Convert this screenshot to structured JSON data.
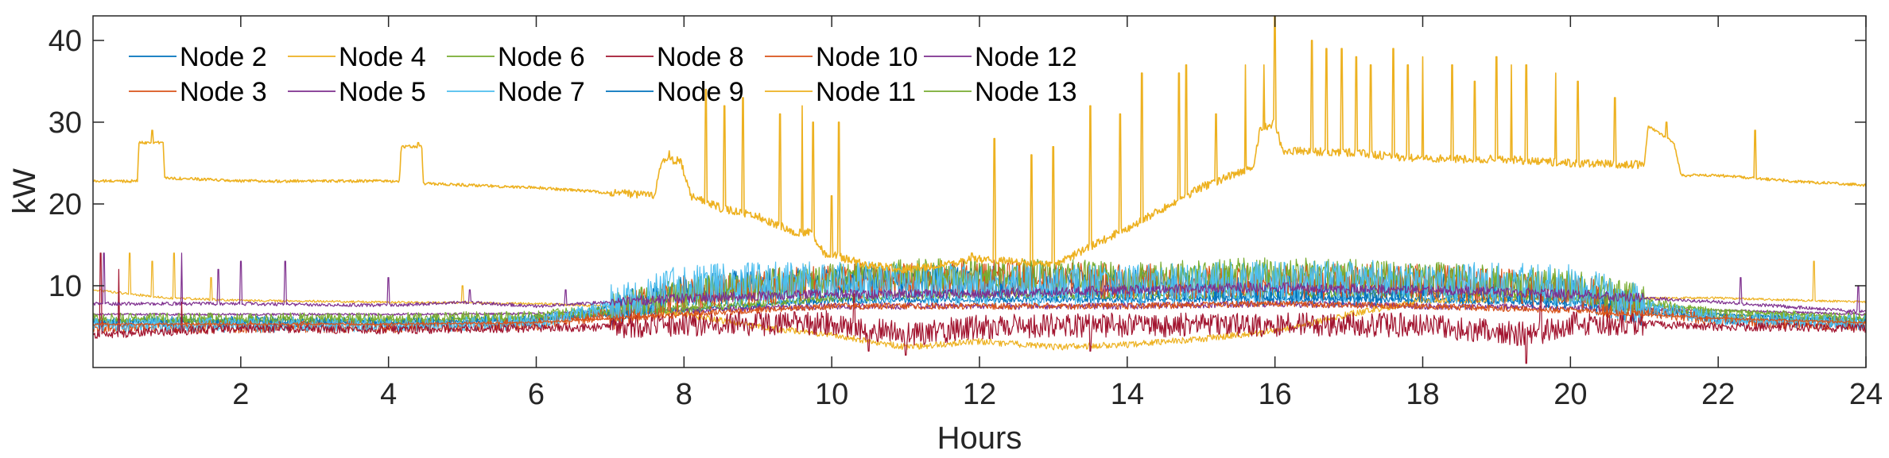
{
  "chart_data": {
    "type": "line",
    "title": "",
    "xlabel": "Hours",
    "ylabel": "kW",
    "xlim": [
      0,
      24
    ],
    "ylim": [
      0,
      43
    ],
    "xticks": [
      2,
      4,
      6,
      8,
      10,
      12,
      14,
      16,
      18,
      20,
      22,
      24
    ],
    "yticks": [
      10,
      20,
      30,
      40
    ],
    "grid": false,
    "legend_position": "top-left",
    "legend_columns": 6,
    "series": [
      {
        "name": "Node 2",
        "color": "#0072BD",
        "points": [
          [
            0,
            5.5
          ],
          [
            2,
            5.6
          ],
          [
            4,
            5.4
          ],
          [
            6,
            5.8
          ],
          [
            7,
            7
          ],
          [
            8,
            9.5
          ],
          [
            10,
            10.5
          ],
          [
            12,
            10.5
          ],
          [
            14,
            10
          ],
          [
            16,
            9.5
          ],
          [
            18,
            9.5
          ],
          [
            20,
            9
          ],
          [
            21,
            7
          ],
          [
            22,
            6
          ],
          [
            24,
            5.5
          ]
        ],
        "noise": 2.0
      },
      {
        "name": "Node 3",
        "color": "#D95319",
        "points": [
          [
            0,
            5
          ],
          [
            2,
            5
          ],
          [
            4,
            5
          ],
          [
            6,
            5.3
          ],
          [
            7,
            6.5
          ],
          [
            8,
            9
          ],
          [
            10,
            10.5
          ],
          [
            12,
            11
          ],
          [
            14,
            10.5
          ],
          [
            16,
            10.5
          ],
          [
            18,
            10.5
          ],
          [
            20,
            9.5
          ],
          [
            21,
            7
          ],
          [
            22,
            5.8
          ],
          [
            24,
            5.2
          ]
        ],
        "noise": 2.2
      },
      {
        "name": "Node 4",
        "color": "#EDB120",
        "points": [
          [
            0,
            22.8
          ],
          [
            0.6,
            22.8
          ],
          [
            0.62,
            27.5
          ],
          [
            0.95,
            27.5
          ],
          [
            0.97,
            23.2
          ],
          [
            2,
            22.8
          ],
          [
            4.15,
            22.8
          ],
          [
            4.17,
            27
          ],
          [
            4.45,
            27
          ],
          [
            4.47,
            22.5
          ],
          [
            6,
            22
          ],
          [
            7.6,
            21
          ],
          [
            7.7,
            25.5
          ],
          [
            7.95,
            25.3
          ],
          [
            8.1,
            21
          ],
          [
            8.5,
            19.5
          ],
          [
            9,
            18.5
          ],
          [
            9.5,
            16.5
          ],
          [
            9.7,
            16.5
          ],
          [
            9.9,
            14
          ],
          [
            10.5,
            12.5
          ],
          [
            11,
            12
          ],
          [
            12,
            13.3
          ],
          [
            13,
            12.5
          ],
          [
            14,
            17
          ],
          [
            15,
            22
          ],
          [
            15.7,
            24.5
          ],
          [
            15.8,
            29
          ],
          [
            16,
            30
          ],
          [
            16.1,
            26.5
          ],
          [
            17,
            26.3
          ],
          [
            18,
            25.5
          ],
          [
            19,
            25.5
          ],
          [
            20,
            25
          ],
          [
            21,
            24.8
          ],
          [
            21.05,
            29.5
          ],
          [
            21.4,
            27.5
          ],
          [
            21.5,
            23.5
          ],
          [
            22,
            23.5
          ],
          [
            23,
            22.8
          ],
          [
            24,
            22.3
          ]
        ],
        "noise": 0.5,
        "spikes": [
          [
            0.8,
            29
          ],
          [
            4.4,
            27.5
          ],
          [
            7.8,
            26.5
          ],
          [
            8.3,
            34
          ],
          [
            8.55,
            32
          ],
          [
            8.8,
            33
          ],
          [
            9.3,
            31
          ],
          [
            9.6,
            32
          ],
          [
            9.75,
            30
          ],
          [
            10.0,
            21
          ],
          [
            10.1,
            30
          ],
          [
            11.9,
            14
          ],
          [
            12.2,
            28
          ],
          [
            12.7,
            26
          ],
          [
            13.0,
            27
          ],
          [
            13.5,
            32
          ],
          [
            13.9,
            31
          ],
          [
            14.2,
            36
          ],
          [
            14.7,
            36
          ],
          [
            14.8,
            37
          ],
          [
            15.2,
            31
          ],
          [
            15.6,
            37
          ],
          [
            15.85,
            37
          ],
          [
            16.0,
            43
          ],
          [
            16.5,
            40
          ],
          [
            16.7,
            39
          ],
          [
            16.9,
            39
          ],
          [
            17.1,
            38
          ],
          [
            17.3,
            37
          ],
          [
            17.6,
            39
          ],
          [
            17.8,
            37
          ],
          [
            18.0,
            38
          ],
          [
            18.4,
            37
          ],
          [
            18.7,
            35
          ],
          [
            19.0,
            38
          ],
          [
            19.2,
            37
          ],
          [
            19.4,
            37
          ],
          [
            19.8,
            36
          ],
          [
            20.1,
            35
          ],
          [
            20.6,
            33
          ],
          [
            21.3,
            30
          ],
          [
            22.5,
            29
          ]
        ]
      },
      {
        "name": "Node 5",
        "color": "#7E2F8E",
        "points": [
          [
            0,
            7.8
          ],
          [
            2,
            7.8
          ],
          [
            4,
            7.6
          ],
          [
            5,
            8
          ],
          [
            6,
            7.5
          ],
          [
            7,
            8
          ],
          [
            8,
            8.5
          ],
          [
            10,
            9
          ],
          [
            12,
            9
          ],
          [
            14,
            9.5
          ],
          [
            16,
            9.8
          ],
          [
            18,
            9.5
          ],
          [
            20,
            9
          ],
          [
            22,
            8
          ],
          [
            24,
            6.8
          ]
        ],
        "noise": 0.6,
        "spikes": [
          [
            0.15,
            14
          ],
          [
            1.2,
            14
          ],
          [
            1.7,
            12
          ],
          [
            2.0,
            13
          ],
          [
            2.6,
            13
          ],
          [
            4.0,
            11
          ],
          [
            5.1,
            9.5
          ],
          [
            6.4,
            9.5
          ],
          [
            22.3,
            11
          ],
          [
            23.9,
            10
          ]
        ]
      },
      {
        "name": "Node 6",
        "color": "#77AC30",
        "points": [
          [
            0,
            6
          ],
          [
            2,
            6
          ],
          [
            4,
            6
          ],
          [
            6,
            6.3
          ],
          [
            7,
            7
          ],
          [
            8,
            9
          ],
          [
            10,
            11
          ],
          [
            12,
            11.5
          ],
          [
            14,
            11
          ],
          [
            16,
            11.5
          ],
          [
            18,
            11
          ],
          [
            20,
            10
          ],
          [
            21,
            8
          ],
          [
            22,
            6.5
          ],
          [
            24,
            6
          ]
        ],
        "noise": 2.0
      },
      {
        "name": "Node 7",
        "color": "#4DBEEE",
        "points": [
          [
            0,
            5.2
          ],
          [
            2,
            5.2
          ],
          [
            4,
            5.2
          ],
          [
            6,
            5.5
          ],
          [
            7,
            7.5
          ],
          [
            8,
            10
          ],
          [
            10,
            10.5
          ],
          [
            12,
            10
          ],
          [
            14,
            10
          ],
          [
            16,
            10.5
          ],
          [
            18,
            10.5
          ],
          [
            20,
            10
          ],
          [
            21,
            7.5
          ],
          [
            22,
            6
          ],
          [
            24,
            5.5
          ]
        ],
        "noise": 2.6
      },
      {
        "name": "Node 8",
        "color": "#A2142F",
        "points": [
          [
            0,
            4
          ],
          [
            2,
            4.8
          ],
          [
            4,
            4.6
          ],
          [
            6,
            4.8
          ],
          [
            8,
            5.2
          ],
          [
            10,
            5.5
          ],
          [
            11,
            4
          ],
          [
            12,
            5
          ],
          [
            14,
            5.2
          ],
          [
            16,
            5.2
          ],
          [
            18,
            5.2
          ],
          [
            19.5,
            4
          ],
          [
            20,
            5.5
          ],
          [
            22,
            5
          ],
          [
            24,
            4.8
          ]
        ],
        "noise": 1.5,
        "spikes": [
          [
            0.1,
            14
          ],
          [
            0.35,
            12
          ],
          [
            1.2,
            8
          ],
          [
            10.3,
            9
          ],
          [
            10.5,
            2
          ],
          [
            11.0,
            1.5
          ],
          [
            13.5,
            2
          ],
          [
            19.4,
            0.5
          ],
          [
            19.6,
            9
          ]
        ]
      },
      {
        "name": "Node 9",
        "color": "#0072BD",
        "points": [
          [
            0,
            5.6
          ],
          [
            2,
            5.6
          ],
          [
            4,
            5.5
          ],
          [
            6,
            5.8
          ],
          [
            8,
            7
          ],
          [
            10,
            8.2
          ],
          [
            12,
            8.3
          ],
          [
            14,
            8.3
          ],
          [
            16,
            8.5
          ],
          [
            18,
            8.3
          ],
          [
            20,
            8
          ],
          [
            22,
            6.5
          ],
          [
            24,
            5.8
          ]
        ],
        "noise": 0.4
      },
      {
        "name": "Node 10",
        "color": "#D95319",
        "points": [
          [
            0,
            5.3
          ],
          [
            2,
            5.3
          ],
          [
            4,
            5.3
          ],
          [
            6,
            5.5
          ],
          [
            8,
            6.5
          ],
          [
            10,
            7.5
          ],
          [
            12,
            7.5
          ],
          [
            14,
            7.5
          ],
          [
            16,
            7.8
          ],
          [
            18,
            7.5
          ],
          [
            20,
            7
          ],
          [
            22,
            6
          ],
          [
            24,
            5.5
          ]
        ],
        "noise": 0.4
      },
      {
        "name": "Node 11",
        "color": "#EDB120",
        "points": [
          [
            0,
            9.5
          ],
          [
            1,
            8.5
          ],
          [
            2,
            8.2
          ],
          [
            4,
            8
          ],
          [
            6,
            7.8
          ],
          [
            7,
            7.5
          ],
          [
            8,
            6.5
          ],
          [
            9,
            5
          ],
          [
            10,
            4
          ],
          [
            11,
            2.5
          ],
          [
            12,
            3.2
          ],
          [
            13,
            2.5
          ],
          [
            14,
            2.8
          ],
          [
            15,
            3.5
          ],
          [
            16,
            4.5
          ],
          [
            17,
            6.5
          ],
          [
            18,
            8.2
          ],
          [
            20,
            8.5
          ],
          [
            22,
            8.5
          ],
          [
            24,
            8
          ]
        ],
        "noise": 0.4,
        "spikes": [
          [
            0.5,
            14
          ],
          [
            0.8,
            13
          ],
          [
            1.1,
            14
          ],
          [
            1.6,
            11
          ],
          [
            5.0,
            10
          ],
          [
            23.3,
            13
          ]
        ]
      },
      {
        "name": "Node 12",
        "color": "#7E2F8E",
        "points": [
          [
            0,
            6.5
          ],
          [
            2,
            6.5
          ],
          [
            4,
            6.5
          ],
          [
            6,
            6.6
          ],
          [
            8,
            7
          ],
          [
            10,
            7.5
          ],
          [
            12,
            7.5
          ],
          [
            14,
            7.5
          ],
          [
            16,
            7.8
          ],
          [
            18,
            7.5
          ],
          [
            20,
            7.3
          ],
          [
            22,
            7
          ],
          [
            24,
            6.5
          ]
        ],
        "noise": 0.4
      },
      {
        "name": "Node 13",
        "color": "#77AC30",
        "points": [
          [
            0,
            5.8
          ],
          [
            2,
            5.8
          ],
          [
            4,
            5.8
          ],
          [
            6,
            6
          ],
          [
            8,
            7.2
          ],
          [
            10,
            8.5
          ],
          [
            12,
            9
          ],
          [
            14,
            8.8
          ],
          [
            16,
            9
          ],
          [
            18,
            9
          ],
          [
            20,
            8.5
          ],
          [
            22,
            7
          ],
          [
            24,
            6
          ]
        ],
        "noise": 0.5
      }
    ]
  }
}
